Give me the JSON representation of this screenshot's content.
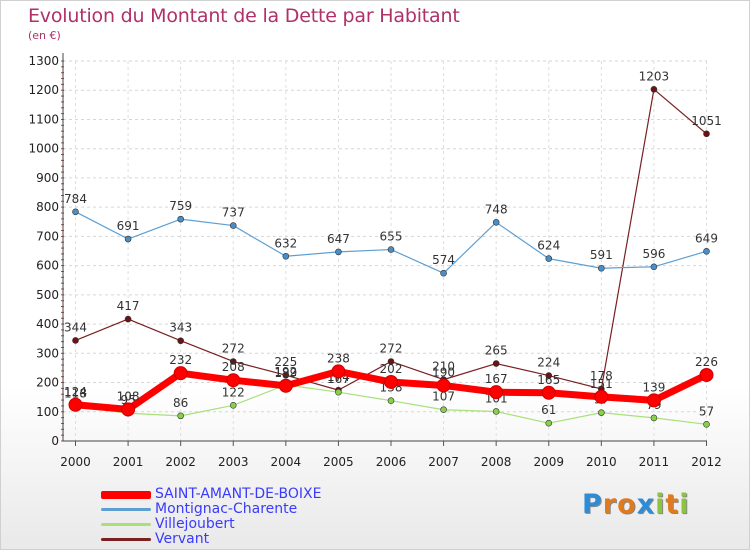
{
  "title": "Evolution du Montant de la Dette par Habitant",
  "unit": "(en €)",
  "logo": {
    "text": "Proxiti",
    "colors": [
      "#2e8bd6",
      "#e07a1f",
      "#e07a1f",
      "#2e8bd6",
      "#8bc53f",
      "#e07a1f",
      "#8bc53f"
    ]
  },
  "chart_data": {
    "type": "line",
    "x": [
      "2000",
      "2001",
      "2002",
      "2003",
      "2004",
      "2005",
      "2006",
      "2007",
      "2008",
      "2009",
      "2010",
      "2011",
      "2012"
    ],
    "ylim": [
      0,
      1300
    ],
    "yticks": [
      0,
      100,
      200,
      300,
      400,
      500,
      600,
      700,
      800,
      900,
      1000,
      1100,
      1200,
      1300
    ],
    "grid": true,
    "legend_position": "bottom-left",
    "series": [
      {
        "name": "Vervant",
        "color": "#7a1f22",
        "marker": "#6b1216",
        "values": [
          344,
          417,
          343,
          272,
          225,
          174,
          272,
          210,
          265,
          224,
          178,
          1203,
          1051
        ],
        "labels": [
          "344",
          "417",
          "343",
          "272",
          "225",
          "174",
          "272",
          "210",
          "265",
          "224",
          "178",
          "1203",
          "1051"
        ]
      },
      {
        "name": "Villejoubert",
        "color": "#a8e07a",
        "marker": "#88d048",
        "values": [
          118,
          95,
          86,
          122,
          192,
          167,
          138,
          107,
          101,
          61,
          97,
          79,
          57
        ],
        "labels": [
          "118",
          "95",
          "86",
          "122",
          "192",
          "167",
          "138",
          "107",
          "101",
          "61",
          "97",
          "79",
          "57"
        ]
      },
      {
        "name": "Montignac-Charente",
        "color": "#5e9fd3",
        "marker": "#4a8ec8",
        "values": [
          784,
          691,
          759,
          737,
          632,
          647,
          655,
          574,
          748,
          624,
          591,
          596,
          649
        ],
        "labels": [
          "784",
          "691",
          "759",
          "737",
          "632",
          "647",
          "655",
          "574",
          "748",
          "624",
          "591",
          "596",
          "649"
        ]
      },
      {
        "name": "SAINT-AMANT-DE-BOIXE",
        "color": "#ff0000",
        "marker": "#ff0000",
        "values": [
          124,
          108,
          232,
          208,
          189,
          238,
          202,
          190,
          167,
          165,
          151,
          139,
          226
        ],
        "labels": [
          "124",
          "108",
          "232",
          "208",
          "189",
          "238",
          "202",
          "190",
          "167",
          "165",
          "151",
          "139",
          "226"
        ]
      }
    ]
  }
}
